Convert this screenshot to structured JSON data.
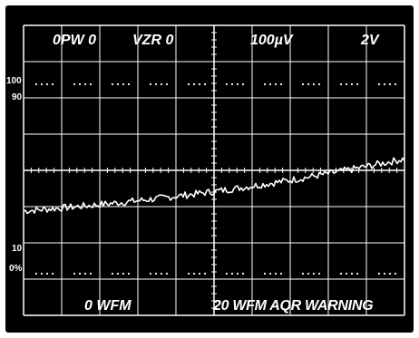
{
  "readouts": {
    "pulse_width": "0PW 0",
    "vzr": "VZR 0",
    "volts_div": "100µV",
    "range": "2V",
    "start_wfm": "0 WFM",
    "status": "20 WFM AQR WARNING"
  },
  "scale_labels": {
    "top_100": "100",
    "top_90": "90",
    "bottom_10": "10",
    "bottom_0": "0%"
  },
  "colors": {
    "background": "#000000",
    "trace": "#ffffff",
    "graticule": "#ffffff"
  },
  "trace": {
    "start_level": 0.36,
    "end_level": 0.54,
    "noise": 0.012
  }
}
